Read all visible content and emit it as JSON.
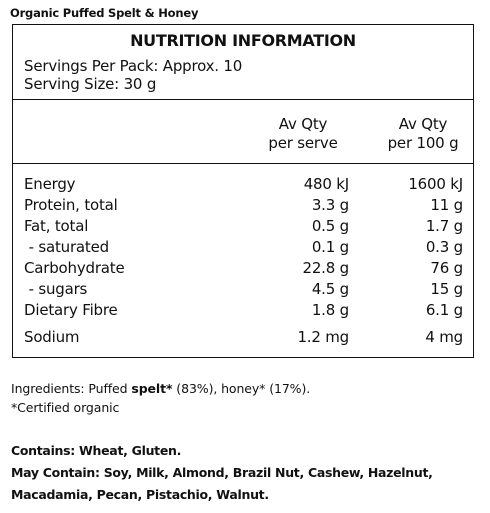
{
  "product_title": "Organic Puffed Spelt & Honey",
  "panel": {
    "heading": "NUTRITION INFORMATION",
    "servings_per_pack": "Servings Per Pack: Approx. 10",
    "serving_size": "Serving Size: 30 g",
    "col1": {
      "line1": "Av Qty",
      "line2": "per serve"
    },
    "col2": {
      "line1": "Av Qty",
      "line2": "per 100 g"
    },
    "rows": [
      {
        "name": "Energy",
        "per_serve": "480 kJ",
        "per_100g": "1600 kJ"
      },
      {
        "name": "Protein, total",
        "per_serve": "3.3 g",
        "per_100g": "11 g"
      },
      {
        "name": "Fat, total",
        "per_serve": "0.5 g",
        "per_100g": "1.7 g"
      },
      {
        "name": " - saturated",
        "per_serve": "0.1 g",
        "per_100g": "0.3 g"
      },
      {
        "name": "Carbohydrate",
        "per_serve": "22.8 g",
        "per_100g": "76 g"
      },
      {
        "name": " - sugars",
        "per_serve": "4.5 g",
        "per_100g": "15 g"
      },
      {
        "name": "Dietary Fibre",
        "per_serve": "1.8 g",
        "per_100g": "6.1 g"
      }
    ],
    "sodium": {
      "name": "Sodium",
      "per_serve": "1.2 mg",
      "per_100g": "4 mg"
    }
  },
  "ingredients": {
    "prefix": "Ingredients: Puffed ",
    "bold_word": "spelt*",
    "suffix": " (83%), honey* (17%).",
    "note": "*Certified organic"
  },
  "allergens": {
    "contains": "Contains: Wheat, Gluten.",
    "may_contain_line1": "May Contain: Soy, Milk, Almond, Brazil Nut, Cashew, Hazelnut,",
    "may_contain_line2": "Macadamia, Pecan, Pistachio, Walnut."
  }
}
